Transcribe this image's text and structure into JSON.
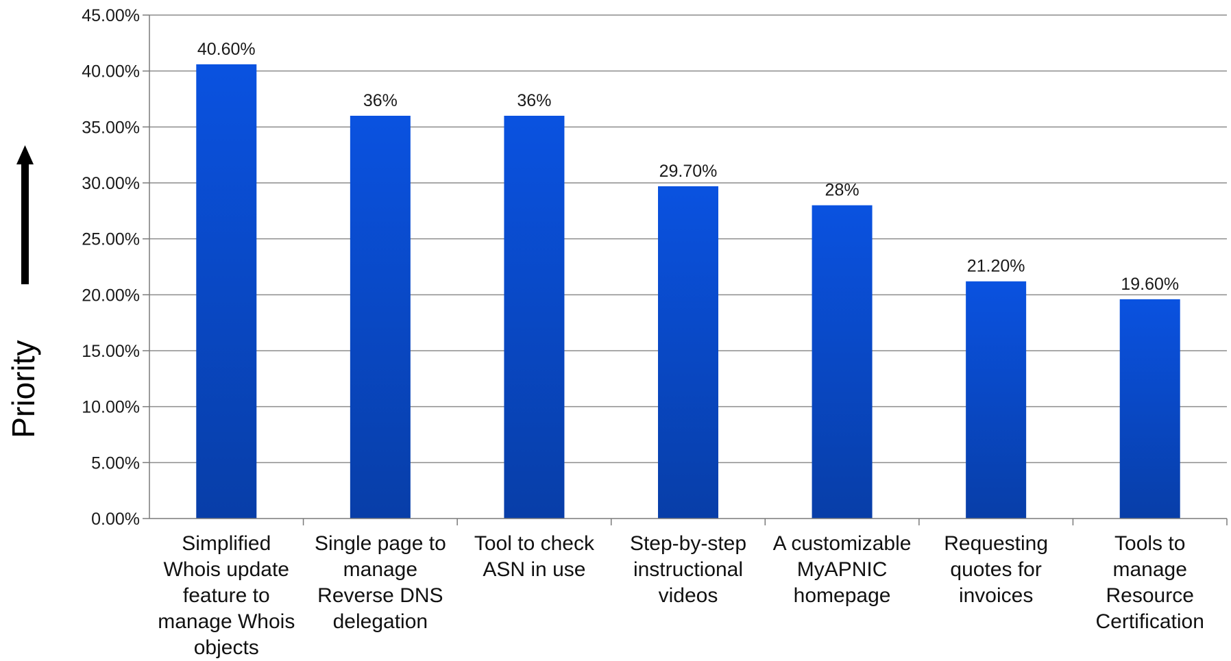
{
  "chart_data": {
    "type": "bar",
    "title": "",
    "xlabel": "",
    "ylabel": "Priority",
    "ylim": [
      0,
      45
    ],
    "yticks": [
      {
        "value": 0,
        "label": "0.00%"
      },
      {
        "value": 5,
        "label": "5.00%"
      },
      {
        "value": 10,
        "label": "10.00%"
      },
      {
        "value": 15,
        "label": "15.00%"
      },
      {
        "value": 20,
        "label": "20.00%"
      },
      {
        "value": 25,
        "label": "25.00%"
      },
      {
        "value": 30,
        "label": "30.00%"
      },
      {
        "value": 35,
        "label": "35.00%"
      },
      {
        "value": 40,
        "label": "40.00%"
      },
      {
        "value": 45,
        "label": "45.00%"
      }
    ],
    "grid": true,
    "legend": "none",
    "categories": [
      [
        "Simplified",
        "Whois update",
        "feature to",
        "manage Whois",
        "objects"
      ],
      [
        "Single page to",
        "manage",
        "Reverse DNS",
        "delegation"
      ],
      [
        "Tool to check",
        "ASN in use"
      ],
      [
        "Step-by-step",
        "instructional",
        "videos"
      ],
      [
        "A customizable",
        "MyAPNIC",
        "homepage"
      ],
      [
        "Requesting",
        "quotes for",
        "invoices"
      ],
      [
        "Tools to",
        "manage",
        "Resource",
        "Certification"
      ]
    ],
    "values": [
      40.6,
      36,
      36,
      29.7,
      28,
      21.2,
      19.6
    ],
    "data_labels": [
      "40.60%",
      "36%",
      "36%",
      "29.70%",
      "28%",
      "21.20%",
      "19.60%"
    ],
    "colors": {
      "bar_top": "#0a52e0",
      "bar_bottom": "#083ea8",
      "grid": "#8c8c8c",
      "axis": "#7a7a7a",
      "arrow": "#000000"
    }
  }
}
